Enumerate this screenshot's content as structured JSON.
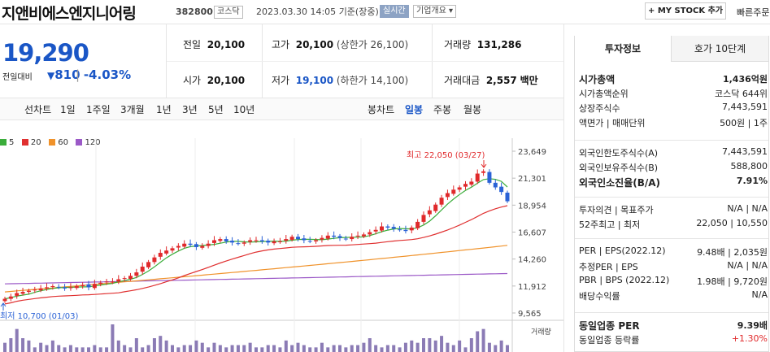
{
  "header": {
    "name": "지앤비에스엔지니어링",
    "code": "382800",
    "market": "코스닥",
    "datetime": "2023.03.30 14:05",
    "basis": "기준(장중)",
    "realtime": "실시간",
    "company_info": "기업개요 ▾",
    "mystock_button": "+ MY STOCK 추가",
    "quick_order": "빠른주문"
  },
  "price": {
    "current": "19,290",
    "change_label": "전일대비",
    "change_arrow": "▼",
    "change": "810",
    "change_pct": "-4.03%"
  },
  "quote": {
    "prev_close_label": "전일",
    "prev_close": "20,100",
    "high_label": "고가",
    "high": "20,100",
    "upper_limit": "(상한가 26,100)",
    "volume_label": "거래량",
    "volume": "131,286",
    "open_label": "시가",
    "open": "20,100",
    "low_label": "저가",
    "low": "19,100",
    "lower_limit": "(하한가 14,100)",
    "amount_label": "거래대금",
    "amount": "2,557",
    "amount_unit": "백만"
  },
  "chart_tabs": {
    "label": "선차트",
    "periods": [
      "1일",
      "1주일",
      "3개월",
      "1년",
      "3년",
      "5년",
      "10년"
    ],
    "candle_label": "봉차트",
    "candle": [
      "일봉",
      "주봉",
      "월봉"
    ],
    "active_candle": "일봉"
  },
  "colors": {
    "up": "#e0292b",
    "down": "#2a62d6",
    "ma5": "#3aad3a",
    "ma20": "#e03030",
    "ma60": "#f0922a",
    "ma120": "#9b59c7"
  },
  "chart_data": {
    "type": "candlestick",
    "legend": [
      "5",
      "20",
      "60",
      "120"
    ],
    "y_ticks": [
      "23,649",
      "21,301",
      "18,954",
      "16,607",
      "14,260",
      "11,912",
      "9,565"
    ],
    "ylim": [
      9565,
      23649
    ],
    "annotations": {
      "high": "최고 22,050 (03/27)",
      "low": "최저 10,700 (01/03)"
    },
    "volume_label": "거래량",
    "closes": [
      10800,
      11000,
      11300,
      11400,
      11500,
      11600,
      11700,
      11800,
      11900,
      11800,
      11700,
      11800,
      11900,
      12000,
      11800,
      12100,
      12200,
      12300,
      12300,
      12500,
      12600,
      12800,
      13100,
      13600,
      14000,
      14400,
      14800,
      15000,
      15200,
      15400,
      15600,
      15500,
      15300,
      15400,
      15600,
      15900,
      16000,
      15800,
      15700,
      15600,
      15700,
      15900,
      15900,
      15800,
      15700,
      15800,
      15800,
      16000,
      16200,
      16000,
      15900,
      15800,
      15900,
      16100,
      16300,
      16200,
      16100,
      16000,
      16200,
      16300,
      16400,
      16600,
      16800,
      17100,
      17000,
      16900,
      16800,
      16700,
      17000,
      17500,
      18100,
      18500,
      19000,
      19600,
      20000,
      20300,
      20500,
      20800,
      21000,
      21700,
      21900,
      20900,
      20500,
      20100,
      19290
    ],
    "volumes": [
      4,
      6,
      10,
      6,
      5,
      2,
      4,
      3,
      5,
      3,
      2,
      3,
      2,
      2,
      2,
      3,
      2,
      2,
      12,
      5,
      3,
      2,
      6,
      2,
      3,
      6,
      7,
      5,
      3,
      2,
      3,
      3,
      5,
      4,
      2,
      4,
      3,
      2,
      3,
      3,
      3,
      4,
      2,
      2,
      3,
      3,
      2,
      5,
      3,
      4,
      3,
      2,
      2,
      4,
      2,
      3,
      3,
      2,
      3,
      3,
      4,
      6,
      3,
      2,
      3,
      3,
      2,
      4,
      5,
      4,
      6,
      6,
      5,
      7,
      4,
      3,
      5,
      2,
      6,
      9,
      10,
      4,
      3,
      5,
      3
    ]
  },
  "invest": {
    "tab_invest": "투자정보",
    "tab_order": "호가 10단계",
    "rows1": [
      {
        "label": "시가총액",
        "value": "1,436억원",
        "bold": true
      },
      {
        "label": "시가총액순위",
        "value": "코스닥 644위"
      },
      {
        "label": "상장주식수",
        "value": "7,443,591"
      },
      {
        "label": "액면가 | 매매단위",
        "value": "500원 | 1주"
      }
    ],
    "rows2": [
      {
        "label": "외국인한도주식수(A)",
        "value": "7,443,591"
      },
      {
        "label": "외국인보유주식수(B)",
        "value": "588,800"
      },
      {
        "label": "외국인소진율(B/A)",
        "value": "7.91%",
        "bold": true
      }
    ],
    "rows3": [
      {
        "label": "투자의견 | 목표주가",
        "value": "N/A | N/A"
      },
      {
        "label": "52주최고 | 최저",
        "value": "22,050 | 10,550"
      }
    ],
    "rows4": [
      {
        "label": "PER | EPS(2022.12)",
        "value": "9.48배 | 2,035원"
      },
      {
        "label": "추정PER | EPS",
        "value": "N/A | N/A"
      },
      {
        "label": "PBR | BPS (2022.12)",
        "value": "1.98배 | 9,720원"
      },
      {
        "label": "배당수익률",
        "value": "N/A"
      }
    ],
    "rows5": [
      {
        "label": "동일업종 PER",
        "value": "9.39배",
        "bold": true
      },
      {
        "label": "동일업종 등락률",
        "value": "+1.30%",
        "red": true
      }
    ]
  }
}
